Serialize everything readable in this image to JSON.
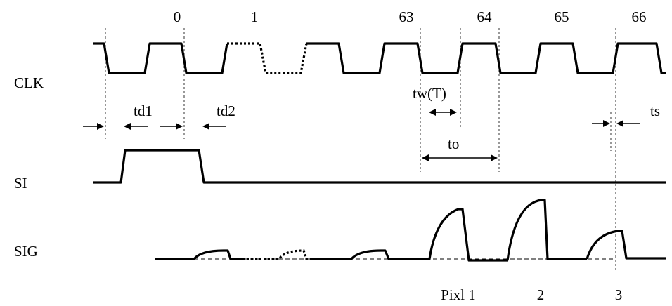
{
  "clock_cycles": [
    "0",
    "1",
    "63",
    "64",
    "65",
    "66"
  ],
  "signals": [
    "CLK",
    "SI",
    "SIG"
  ],
  "timings": {
    "td1": "td1",
    "td2": "td2",
    "tw": "tw(T)",
    "to": "to",
    "ts": "ts"
  },
  "pixels": [
    "Pixl 1",
    "2",
    "3"
  ]
}
